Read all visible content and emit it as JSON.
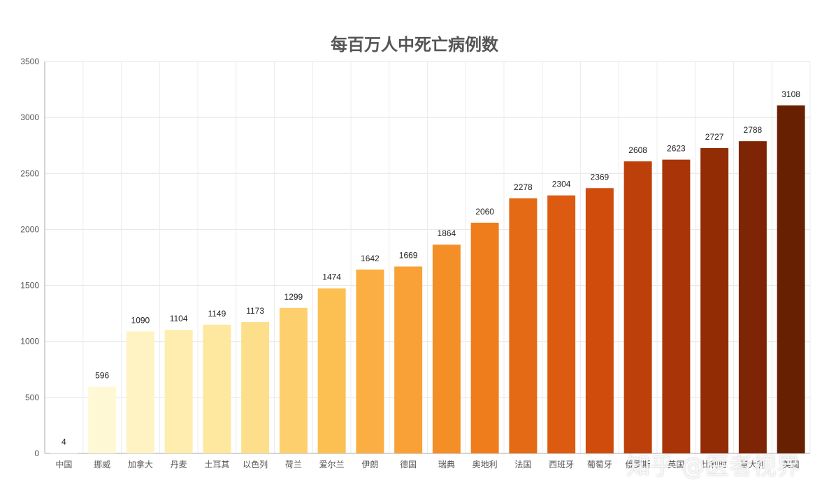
{
  "chart_data": {
    "type": "bar",
    "title": "每百万人中死亡病例数",
    "xlabel": "",
    "ylabel": "",
    "ylim": [
      0,
      3500
    ],
    "yticks": [
      0,
      500,
      1000,
      1500,
      2000,
      2500,
      3000,
      3500
    ],
    "grid": true,
    "categories": [
      "中国",
      "挪威",
      "加拿大",
      "丹麦",
      "土耳其",
      "以色列",
      "荷兰",
      "爱尔兰",
      "伊朗",
      "德国",
      "瑞典",
      "奥地利",
      "法国",
      "西班牙",
      "葡萄牙",
      "俄罗斯",
      "英国",
      "比利时",
      "意大利",
      "美国"
    ],
    "values": [
      4,
      596,
      1090,
      1104,
      1149,
      1173,
      1299,
      1474,
      1642,
      1669,
      1864,
      2060,
      2278,
      2304,
      2369,
      2608,
      2623,
      2727,
      2788,
      3108
    ],
    "bar_colors": [
      "#fffde0",
      "#fff8d4",
      "#fff3c4",
      "#ffedb0",
      "#fee79f",
      "#fddf8b",
      "#fdd06d",
      "#fcbf52",
      "#fbae42",
      "#f9a136",
      "#f48e27",
      "#ef7d1c",
      "#e56a15",
      "#dc5b10",
      "#cf4c0c",
      "#bd3f0a",
      "#a83407",
      "#912c05",
      "#7d2504",
      "#672002"
    ]
  },
  "watermark": "知乎 @医者视界"
}
